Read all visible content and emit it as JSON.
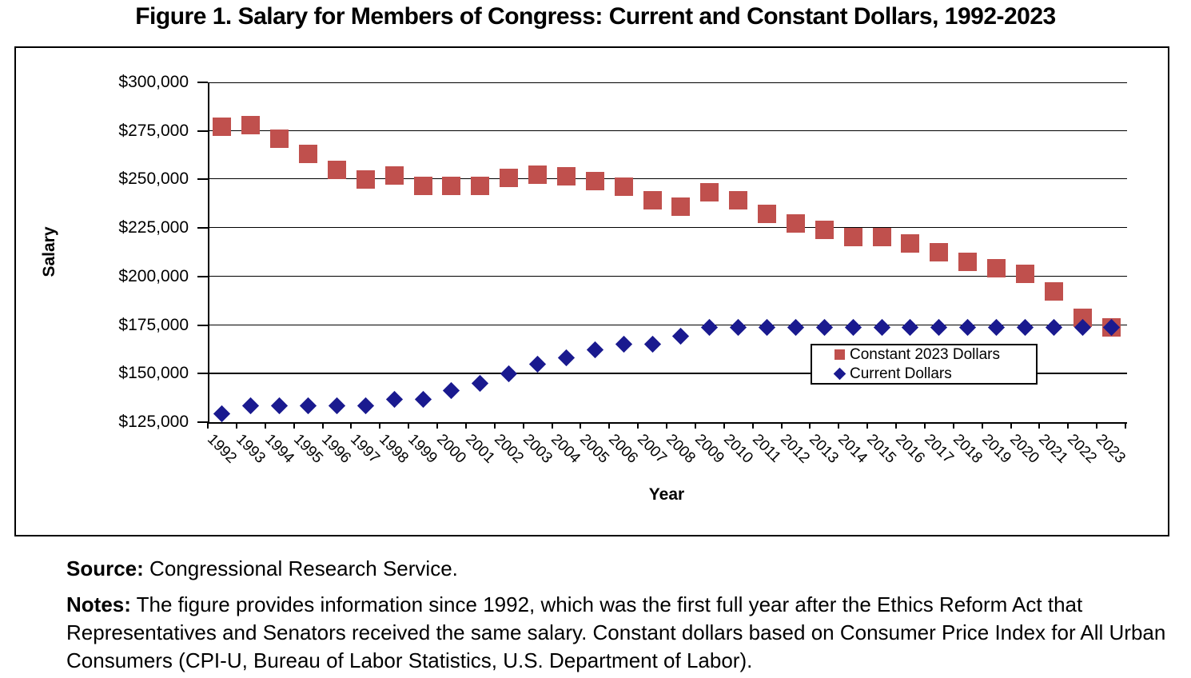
{
  "title": "Figure 1. Salary for Members of Congress: Current and Constant Dollars, 1992-2023",
  "chart_data": {
    "type": "scatter",
    "x": [
      1992,
      1993,
      1994,
      1995,
      1996,
      1997,
      1998,
      1999,
      2000,
      2001,
      2002,
      2003,
      2004,
      2005,
      2006,
      2007,
      2008,
      2009,
      2010,
      2011,
      2012,
      2013,
      2014,
      2015,
      2016,
      2017,
      2018,
      2019,
      2020,
      2021,
      2022,
      2023
    ],
    "series": [
      {
        "name": "Constant 2023 Dollars",
        "marker": "square",
        "color": "#C0504D",
        "values": [
          277000,
          278000,
          271000,
          263000,
          255000,
          250000,
          252000,
          246500,
          246500,
          246500,
          250700,
          252500,
          251500,
          249000,
          246300,
          239200,
          235800,
          243500,
          239400,
          232300,
          227200,
          224100,
          220400,
          220400,
          217000,
          212700,
          207500,
          204100,
          201300,
          192500,
          178600,
          174000
        ]
      },
      {
        "name": "Current Dollars",
        "marker": "diamond",
        "color": "#1A1A8F",
        "values": [
          129500,
          133600,
          133600,
          133600,
          133600,
          133600,
          136700,
          136700,
          141300,
          145100,
          150000,
          154700,
          158100,
          162100,
          165200,
          165200,
          169300,
          174000,
          174000,
          174000,
          174000,
          174000,
          174000,
          174000,
          174000,
          174000,
          174000,
          174000,
          174000,
          174000,
          174000,
          174000
        ]
      }
    ],
    "xlabel": "Year",
    "ylabel": "Salary",
    "ylim": [
      125000,
      300000
    ],
    "ytick_step": 25000,
    "grid": true,
    "legend_position": "inside-right",
    "currency_prefix": "$"
  },
  "legend": {
    "items": [
      {
        "label": "Constant 2023 Dollars",
        "marker": "square",
        "color": "#C0504D"
      },
      {
        "label": "Current Dollars",
        "marker": "diamond",
        "color": "#1A1A8F"
      }
    ]
  },
  "footer": {
    "source_label": "Source:",
    "source_text": " Congressional Research Service.",
    "notes_label": "Notes:",
    "notes_text": " The figure provides information since 1992, which was the first full year after the Ethics Reform Act that Representatives and Senators received the same salary. Constant dollars based on Consumer Price Index for All Urban Consumers (CPI-U, Bureau of Labor Statistics, U.S. Department of Labor)."
  }
}
